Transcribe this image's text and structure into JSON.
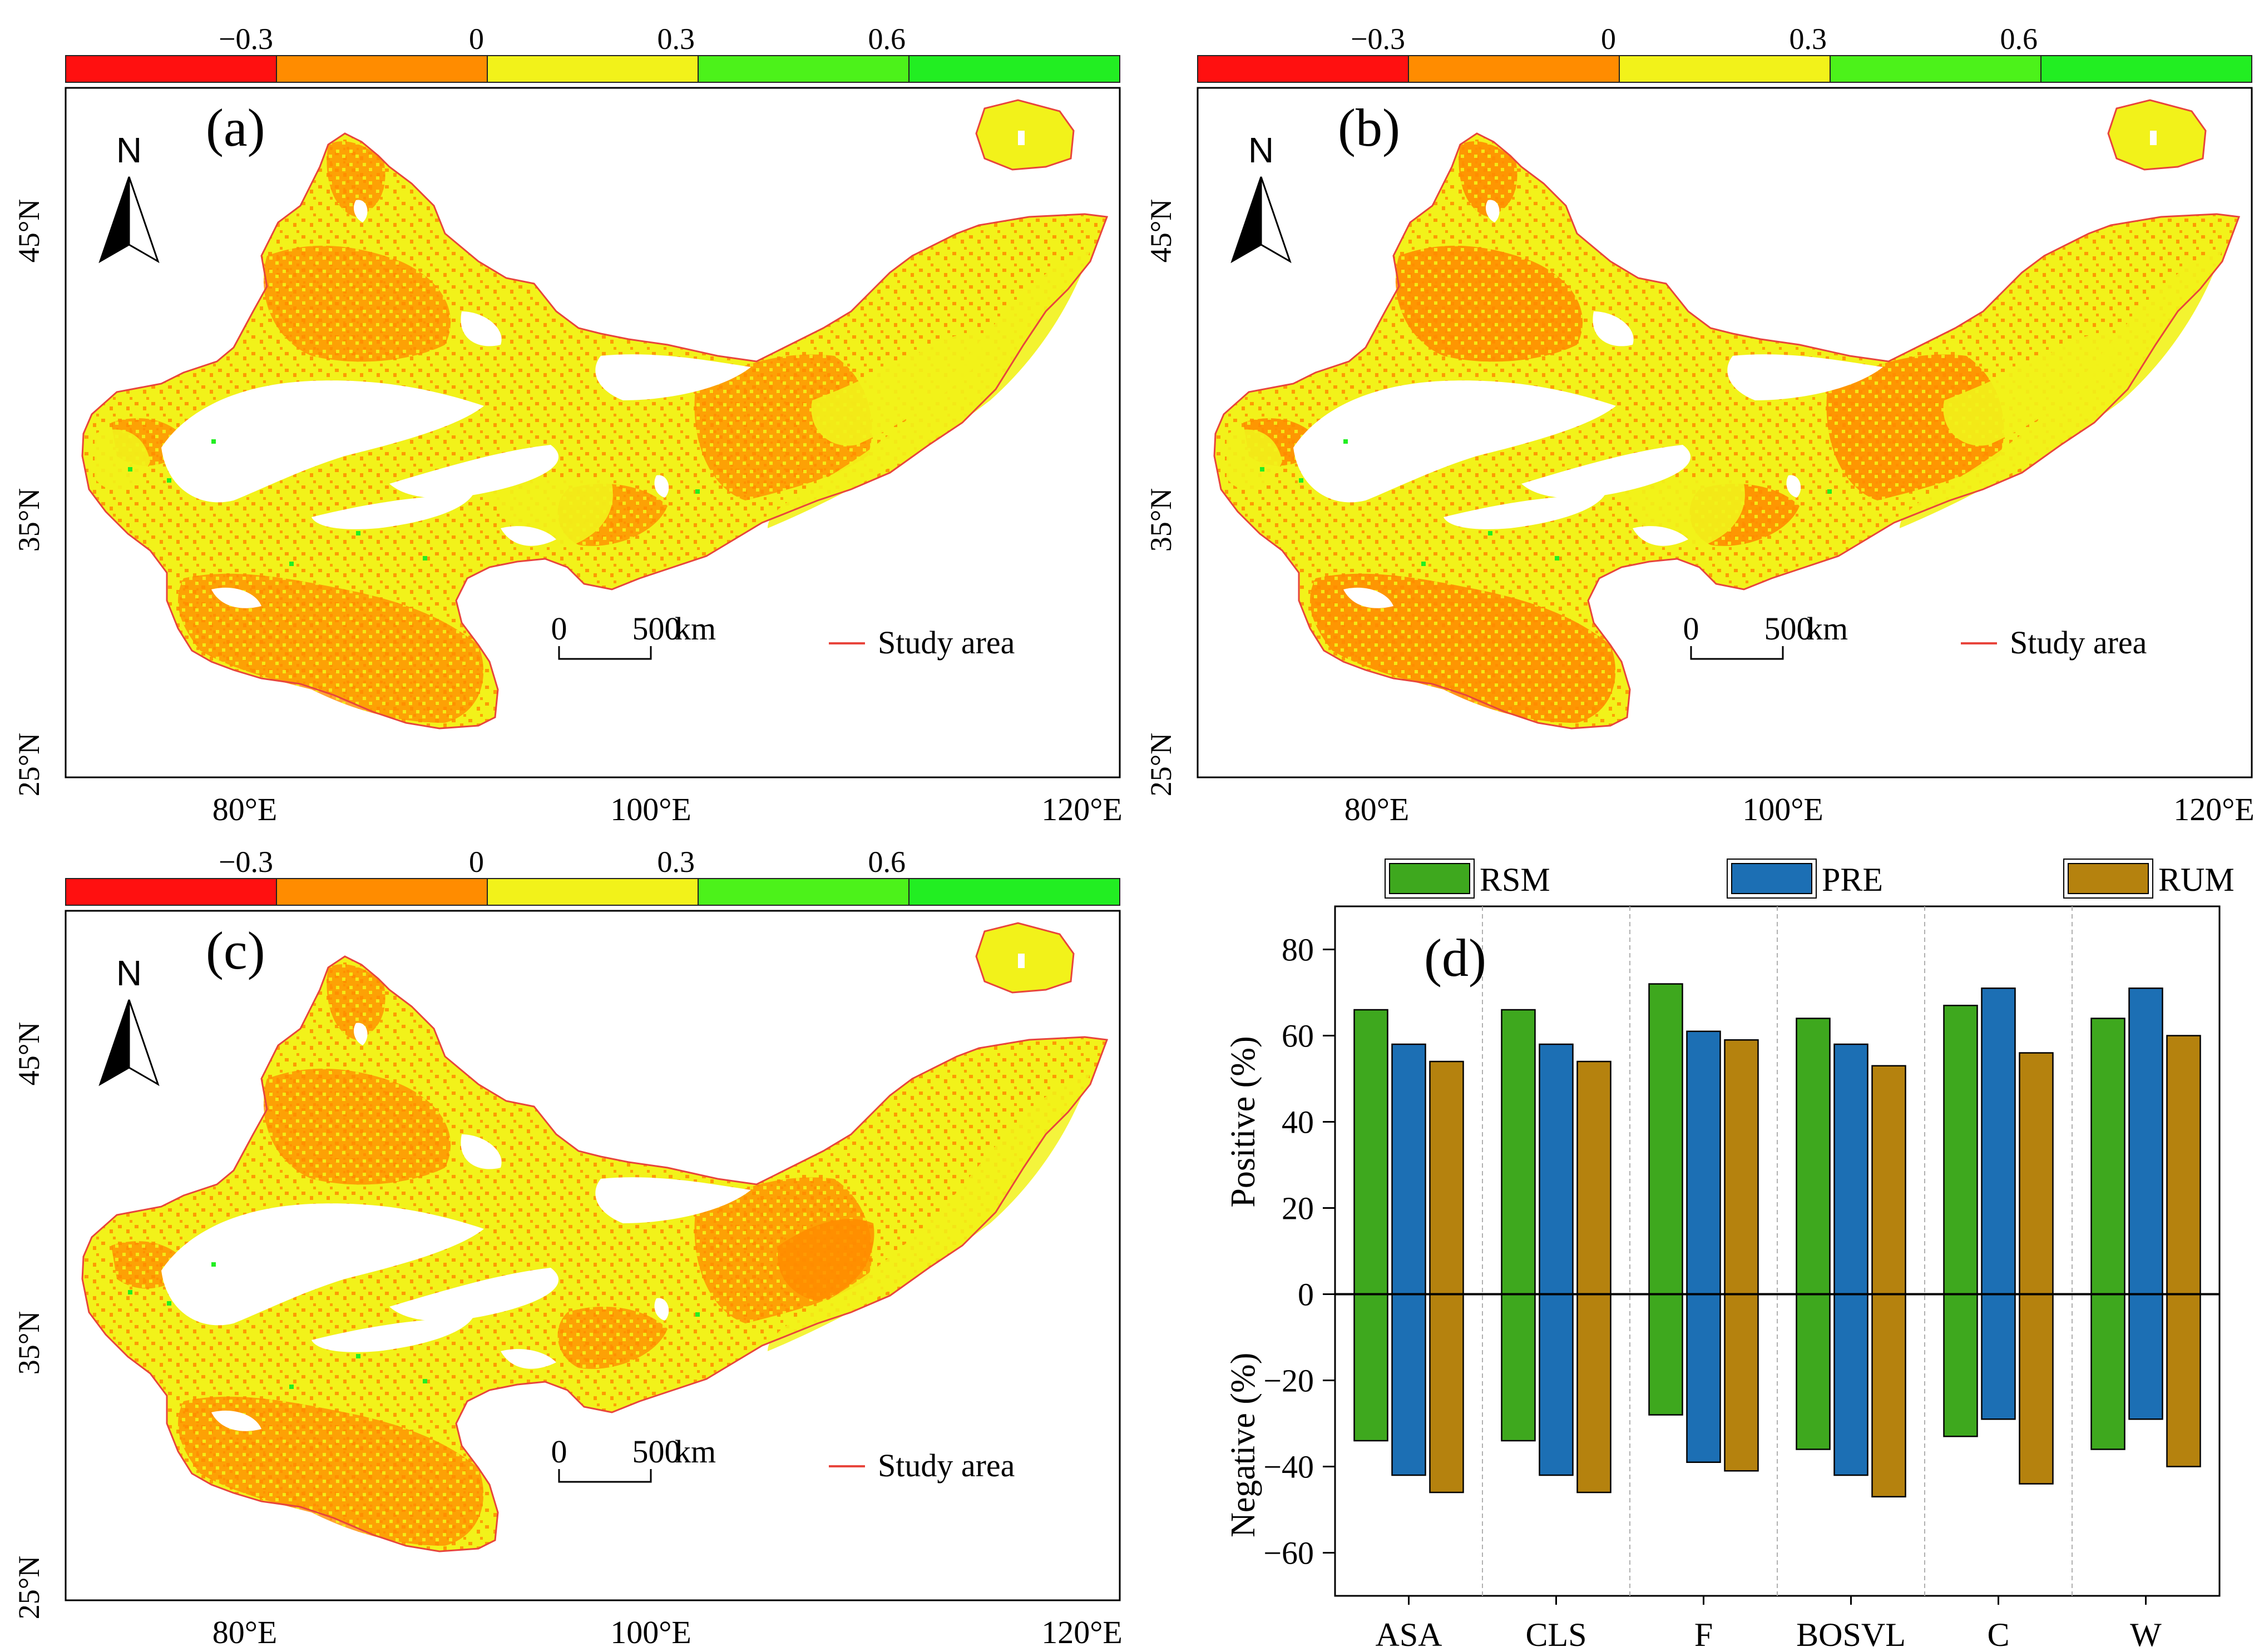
{
  "colors": {
    "class_colors": [
      "#ff1010",
      "#ff8c00",
      "#f2f21a",
      "#4cf21a",
      "#22ee22"
    ],
    "study_area_outline": "#e8453c",
    "bar_colors": {
      "RSM": "#3ea81e",
      "PRE": "#1c6fb4",
      "RUM": "#b5820e"
    }
  },
  "colorbar": {
    "tick_labels": [
      "−0.3",
      "0",
      "0.3",
      "0.6"
    ]
  },
  "maps": [
    {
      "panel_label": "(a)",
      "north_label": "N",
      "lat_labels": [
        "45°N",
        "35°N",
        "25°N"
      ],
      "lon_labels": [
        "80°E",
        "100°E",
        "120°E"
      ],
      "scale_zero": "0",
      "scale_value": "500",
      "scale_unit": "km",
      "legend_label": "Study area"
    },
    {
      "panel_label": "(b)",
      "north_label": "N",
      "lat_labels": [
        "45°N",
        "35°N",
        "25°N"
      ],
      "lon_labels": [
        "80°E",
        "100°E",
        "120°E"
      ],
      "scale_zero": "0",
      "scale_value": "500",
      "scale_unit": "km",
      "legend_label": "Study area"
    },
    {
      "panel_label": "(c)",
      "north_label": "N",
      "lat_labels": [
        "45°N",
        "35°N",
        "25°N"
      ],
      "lon_labels": [
        "80°E",
        "100°E",
        "120°E"
      ],
      "scale_zero": "0",
      "scale_value": "500",
      "scale_unit": "km",
      "legend_label": "Study area"
    }
  ],
  "chart_data": {
    "type": "bar",
    "panel_label": "(d)",
    "categories": [
      "ASA",
      "CLS",
      "F",
      "BOSVL",
      "C",
      "W"
    ],
    "series": [
      {
        "name": "RSM",
        "positive": [
          66,
          66,
          72,
          64,
          67,
          64
        ],
        "negative": [
          -34,
          -34,
          -28,
          -36,
          -33,
          -36
        ]
      },
      {
        "name": "PRE",
        "positive": [
          58,
          58,
          61,
          58,
          71,
          71
        ],
        "negative": [
          -42,
          -42,
          -39,
          -42,
          -29,
          -29
        ]
      },
      {
        "name": "RUM",
        "positive": [
          54,
          54,
          59,
          53,
          56,
          60
        ],
        "negative": [
          -46,
          -46,
          -41,
          -47,
          -44,
          -40
        ]
      }
    ],
    "ylabel_positive": "Positive (%)",
    "ylabel_negative": "Negative (%)",
    "yticks": [
      80,
      60,
      40,
      20,
      0,
      -20,
      -40,
      -60
    ],
    "ytick_labels": [
      "80",
      "60",
      "40",
      "20",
      "0",
      "−20",
      "−40",
      "−60"
    ],
    "ylim": [
      -70,
      90
    ],
    "legend_position": "top"
  }
}
